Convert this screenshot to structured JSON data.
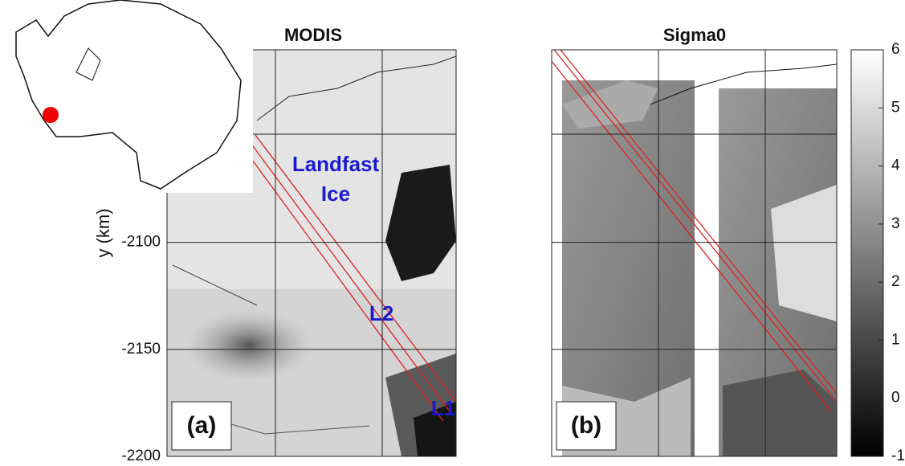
{
  "panels": [
    {
      "title": "MODIS",
      "label": "(a)",
      "annotations": [
        "Landfast",
        "Ice",
        "L2",
        "L1"
      ]
    },
    {
      "title": "Sigma0",
      "label": "(b)"
    }
  ],
  "y_axis": {
    "label": "y (km)",
    "lim": [
      -2200,
      -2010
    ],
    "ticks": [
      -2100,
      -2150,
      -2200
    ]
  },
  "colorbar": {
    "lim": [
      -1,
      6
    ],
    "ticks": [
      -1,
      0,
      1,
      2,
      3,
      4,
      5,
      6
    ]
  }
}
